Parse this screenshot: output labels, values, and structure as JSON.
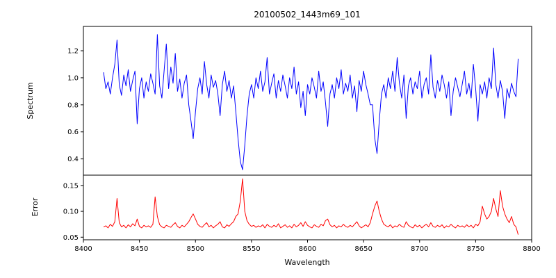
{
  "chart_data": {
    "type": "line",
    "title": "20100502_1443m69_101",
    "xlabel": "Wavelength",
    "xlim": [
      8400,
      8800
    ],
    "x_start": 8418,
    "x_step": 2,
    "x_ticks": {
      "values": [
        8400,
        8450,
        8500,
        8550,
        8600,
        8650,
        8700,
        8750,
        8800
      ],
      "labels": [
        "8400",
        "8450",
        "8500",
        "8550",
        "8600",
        "8650",
        "8700",
        "8750",
        "8800"
      ]
    },
    "grid": false,
    "legend": "none",
    "background": "#ffffff",
    "axis_color": "#000000",
    "panels": [
      {
        "name": "spectrum",
        "ylabel": "Spectrum",
        "color": "#0000ff",
        "ylim": [
          0.28,
          1.38
        ],
        "y_ticks": {
          "values": [
            0.4,
            0.6,
            0.8,
            1.0,
            1.2
          ],
          "labels": [
            "0.4",
            "0.6",
            "0.8",
            "1.0",
            "1.2"
          ]
        },
        "values": [
          1.04,
          0.92,
          0.97,
          0.88,
          1.0,
          1.1,
          1.28,
          0.95,
          0.87,
          1.02,
          0.94,
          1.06,
          0.9,
          0.98,
          1.05,
          0.66,
          0.92,
          1.0,
          0.85,
          0.97,
          0.9,
          1.03,
          0.96,
          0.88,
          1.32,
          0.94,
          0.85,
          1.05,
          1.25,
          0.92,
          1.08,
          0.96,
          1.18,
          0.9,
          0.99,
          0.85,
          0.96,
          1.02,
          0.8,
          0.68,
          0.55,
          0.75,
          0.92,
          1.0,
          0.88,
          1.12,
          0.95,
          0.85,
          1.02,
          0.93,
          0.98,
          0.88,
          0.72,
          0.95,
          1.05,
          0.9,
          0.98,
          0.85,
          0.94,
          0.75,
          0.55,
          0.38,
          0.32,
          0.5,
          0.72,
          0.88,
          0.95,
          0.85,
          1.0,
          0.92,
          1.05,
          0.9,
          0.97,
          1.15,
          0.88,
          0.96,
          1.03,
          0.85,
          0.98,
          0.9,
          1.02,
          0.94,
          0.85,
          1.0,
          0.92,
          1.08,
          0.88,
          0.97,
          0.78,
          0.9,
          0.72,
          0.95,
          0.88,
          1.0,
          0.93,
          0.85,
          1.05,
          0.9,
          0.97,
          0.82,
          0.64,
          0.88,
          0.95,
          0.85,
          1.0,
          0.92,
          1.06,
          0.88,
          0.96,
          0.9,
          1.02,
          0.85,
          0.94,
          0.75,
          0.98,
          0.9,
          1.05,
          0.95,
          0.88,
          0.8,
          0.8,
          0.55,
          0.44,
          0.68,
          0.88,
          0.95,
          0.85,
          1.0,
          0.92,
          1.05,
          0.9,
          1.15,
          0.96,
          0.85,
          1.02,
          0.7,
          0.94,
          1.0,
          0.88,
          0.97,
          0.92,
          1.05,
          0.85,
          0.95,
          1.0,
          0.88,
          1.17,
          0.93,
          0.85,
          0.98,
          0.9,
          1.02,
          0.95,
          0.85,
          0.97,
          0.72,
          0.9,
          1.0,
          0.93,
          0.86,
          0.95,
          1.05,
          0.88,
          0.96,
          0.85,
          1.1,
          0.92,
          0.68,
          0.95,
          0.88,
          0.97,
          0.85,
          1.0,
          0.92,
          1.22,
          0.95,
          0.85,
          0.98,
          0.9,
          0.7,
          0.92,
          0.85,
          0.96,
          0.9,
          0.86,
          1.14
        ]
      },
      {
        "name": "error",
        "ylabel": "Error",
        "color": "#ff0000",
        "ylim": [
          0.045,
          0.17
        ],
        "y_ticks": {
          "values": [
            0.05,
            0.1,
            0.15
          ],
          "labels": [
            "0.05",
            "0.10",
            "0.15"
          ]
        },
        "values": [
          0.07,
          0.072,
          0.068,
          0.075,
          0.071,
          0.08,
          0.125,
          0.078,
          0.07,
          0.073,
          0.068,
          0.074,
          0.07,
          0.076,
          0.072,
          0.085,
          0.071,
          0.068,
          0.073,
          0.07,
          0.072,
          0.069,
          0.075,
          0.128,
          0.09,
          0.074,
          0.07,
          0.068,
          0.073,
          0.071,
          0.069,
          0.074,
          0.078,
          0.071,
          0.068,
          0.073,
          0.07,
          0.075,
          0.08,
          0.088,
          0.095,
          0.085,
          0.075,
          0.071,
          0.069,
          0.074,
          0.078,
          0.07,
          0.073,
          0.068,
          0.072,
          0.075,
          0.08,
          0.07,
          0.068,
          0.074,
          0.071,
          0.076,
          0.08,
          0.09,
          0.095,
          0.12,
          0.163,
          0.1,
          0.082,
          0.075,
          0.071,
          0.073,
          0.069,
          0.072,
          0.07,
          0.074,
          0.068,
          0.075,
          0.071,
          0.069,
          0.073,
          0.07,
          0.076,
          0.068,
          0.071,
          0.074,
          0.069,
          0.072,
          0.068,
          0.075,
          0.07,
          0.073,
          0.078,
          0.071,
          0.08,
          0.073,
          0.07,
          0.068,
          0.074,
          0.071,
          0.069,
          0.075,
          0.072,
          0.082,
          0.085,
          0.074,
          0.07,
          0.073,
          0.068,
          0.072,
          0.07,
          0.075,
          0.071,
          0.069,
          0.073,
          0.07,
          0.075,
          0.08,
          0.072,
          0.068,
          0.071,
          0.074,
          0.07,
          0.078,
          0.095,
          0.11,
          0.12,
          0.1,
          0.085,
          0.075,
          0.072,
          0.07,
          0.074,
          0.068,
          0.072,
          0.07,
          0.075,
          0.071,
          0.069,
          0.08,
          0.073,
          0.07,
          0.068,
          0.074,
          0.07,
          0.073,
          0.068,
          0.072,
          0.075,
          0.07,
          0.078,
          0.071,
          0.069,
          0.073,
          0.07,
          0.074,
          0.068,
          0.072,
          0.07,
          0.075,
          0.071,
          0.068,
          0.073,
          0.07,
          0.072,
          0.069,
          0.074,
          0.07,
          0.073,
          0.068,
          0.075,
          0.072,
          0.08,
          0.11,
          0.095,
          0.085,
          0.09,
          0.1,
          0.125,
          0.105,
          0.09,
          0.14,
          0.11,
          0.095,
          0.085,
          0.078,
          0.09,
          0.075,
          0.07,
          0.055
        ]
      }
    ]
  }
}
